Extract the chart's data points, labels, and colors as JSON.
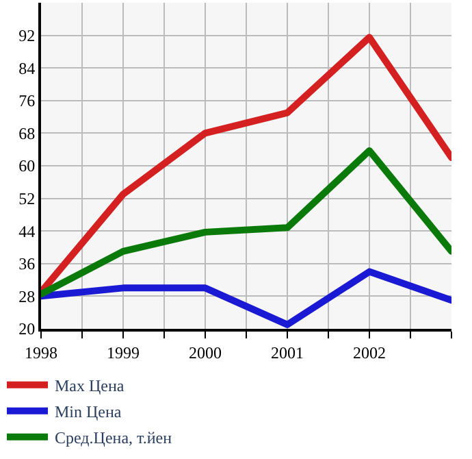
{
  "chart_data": {
    "type": "line",
    "x": [
      1998,
      1999,
      2000,
      2001,
      2002,
      2003
    ],
    "series": [
      {
        "name": "Max Цена",
        "color": "#d42020",
        "values": [
          29,
          53,
          68,
          73,
          91.5,
          62
        ]
      },
      {
        "name": "Min Цена",
        "color": "#1a1ad4",
        "values": [
          28,
          30,
          30,
          21,
          34,
          27
        ]
      },
      {
        "name": "Сред.Цена, т.йен",
        "color": "#0a7a0a",
        "values": [
          28.5,
          39,
          43.7,
          44.8,
          63.7,
          39
        ]
      }
    ],
    "xlim": [
      1998,
      2003
    ],
    "xticks": [
      1998,
      {
        "value": 1998.5,
        "label": null
      },
      1999,
      {
        "value": 1999.5,
        "label": null
      },
      2000,
      {
        "value": 2000.5,
        "label": null
      },
      2001,
      {
        "value": 2001.5,
        "label": null
      },
      2002,
      {
        "value": 2002.5,
        "label": null
      },
      {
        "value": 2003,
        "label": null
      }
    ],
    "ylim": [
      20,
      100
    ],
    "yticks": [
      20,
      28,
      36,
      44,
      52,
      60,
      68,
      76,
      84,
      92,
      {
        "value": 100,
        "label": null
      }
    ],
    "grid": true,
    "legend": "bottom",
    "marker": "none",
    "line_style": "solid"
  }
}
